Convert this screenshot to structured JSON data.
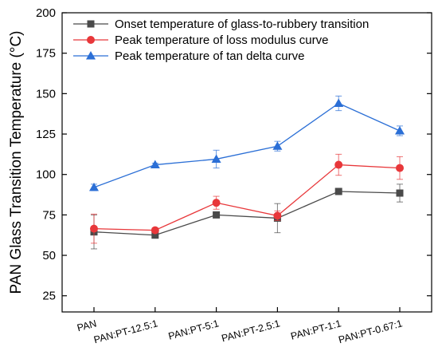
{
  "chart_data": {
    "type": "line",
    "categories": [
      "PAN",
      "PAN:PT-12.5:1",
      "PAN:PT-5:1",
      "PAN:PT-2.5:1",
      "PAN:PT-1:1",
      "PAN:PT-0.67:1"
    ],
    "ylabel": "PAN Glass Transition Temperature (°C)",
    "ylim": [
      15,
      200
    ],
    "yticks": [
      25,
      50,
      75,
      100,
      125,
      150,
      175,
      200
    ],
    "grid": false,
    "legend_position": "top-left",
    "series": [
      {
        "name": "Onset temperature of glass-to-rubbery transition",
        "color": "#4a4a4a",
        "marker": "square",
        "values": [
          64.5,
          62.5,
          75,
          73,
          89.5,
          88.5
        ],
        "errors": [
          10.5,
          1.5,
          1.5,
          9,
          1.5,
          5.5
        ]
      },
      {
        "name": "Peak temperature of loss modulus curve",
        "color": "#e8373a",
        "marker": "circle",
        "values": [
          66.5,
          65.5,
          82.5,
          74.5,
          106,
          104
        ],
        "errors": [
          9,
          1.5,
          4,
          3,
          6.5,
          7
        ]
      },
      {
        "name": "Peak temperature of tan delta curve",
        "color": "#2b6fd6",
        "marker": "triangle",
        "values": [
          92,
          106,
          109.5,
          117.5,
          144,
          127
        ],
        "errors": [
          2,
          1,
          5.5,
          3,
          4.5,
          3
        ]
      }
    ]
  }
}
